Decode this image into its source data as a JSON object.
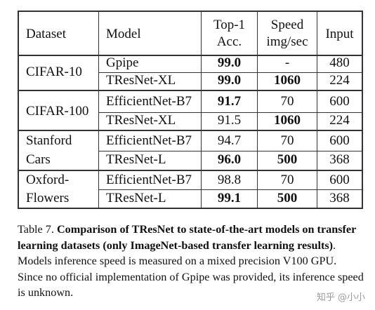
{
  "table": {
    "headers": {
      "dataset": "Dataset",
      "model": "Model",
      "top1_line1": "Top-1",
      "top1_line2": "Acc.",
      "speed_line1": "Speed",
      "speed_line2": "img/sec",
      "input": "Input"
    },
    "groups": [
      {
        "dataset_lines": [
          "CIFAR-10"
        ],
        "rows": [
          {
            "model": "Gpipe",
            "acc": "99.0",
            "acc_bold": true,
            "speed": "-",
            "speed_bold": false,
            "input": "480"
          },
          {
            "model": "TResNet-XL",
            "acc": "99.0",
            "acc_bold": true,
            "speed": "1060",
            "speed_bold": true,
            "input": "224"
          }
        ]
      },
      {
        "dataset_lines": [
          "CIFAR-100"
        ],
        "rows": [
          {
            "model": "EfficientNet-B7",
            "acc": "91.7",
            "acc_bold": true,
            "speed": "70",
            "speed_bold": false,
            "input": "600"
          },
          {
            "model": "TResNet-XL",
            "acc": "91.5",
            "acc_bold": false,
            "speed": "1060",
            "speed_bold": true,
            "input": "224"
          }
        ]
      },
      {
        "dataset_lines": [
          "Stanford",
          "Cars"
        ],
        "rows": [
          {
            "model": "EfficientNet-B7",
            "acc": "94.7",
            "acc_bold": false,
            "speed": "70",
            "speed_bold": false,
            "input": "600"
          },
          {
            "model": "TResNet-L",
            "acc": "96.0",
            "acc_bold": true,
            "speed": "500",
            "speed_bold": true,
            "input": "368"
          }
        ]
      },
      {
        "dataset_lines": [
          "Oxford-",
          "Flowers"
        ],
        "rows": [
          {
            "model": "EfficientNet-B7",
            "acc": "98.8",
            "acc_bold": false,
            "speed": "70",
            "speed_bold": false,
            "input": "600"
          },
          {
            "model": "TResNet-L",
            "acc": "99.1",
            "acc_bold": true,
            "speed": "500",
            "speed_bold": true,
            "input": "368"
          }
        ]
      }
    ]
  },
  "caption": {
    "prefix": "Table 7. ",
    "bold": "Comparison of TResNet to state-of-the-art models on transfer learning datasets (only ImageNet-based transfer learning results)",
    "rest": ". Models inference speed is measured on a mixed precision V100 GPU. Since no official implementation of Gpipe was provided, its inference speed is unknown."
  },
  "watermark": {
    "text": "知乎 @小小"
  }
}
